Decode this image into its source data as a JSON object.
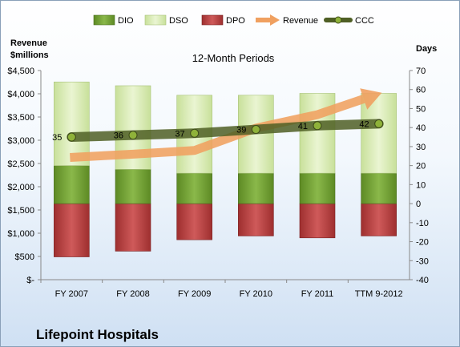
{
  "chart_data": {
    "type": "bar",
    "title": "12-Month Periods",
    "company": "Lifepoint Hospitals",
    "left_axis": {
      "label_line1": "Revenue",
      "label_line2": "$millions",
      "ticks": [
        "$-",
        "$500",
        "$1,000",
        "$1,500",
        "$2,000",
        "$2,500",
        "$3,000",
        "$3,500",
        "$4,000",
        "$4,500"
      ],
      "range": [
        0,
        4500
      ]
    },
    "right_axis": {
      "label": "Days",
      "ticks": [
        "-40",
        "-30",
        "-20",
        "-10",
        "0",
        "10",
        "20",
        "30",
        "40",
        "50",
        "60",
        "70"
      ],
      "range": [
        -40,
        70
      ]
    },
    "categories": [
      "FY 2007",
      "FY 2008",
      "FY 2009",
      "FY 2010",
      "FY 2011",
      "TTM 9-2012"
    ],
    "series": [
      {
        "name": "DIO",
        "axis": "right",
        "kind": "stacked-bar",
        "color": "#6b9a2e",
        "values": [
          20,
          18,
          16,
          16,
          16,
          16
        ]
      },
      {
        "name": "DSO",
        "axis": "right",
        "kind": "stacked-bar",
        "color": "#d8ebb0",
        "values": [
          44,
          44,
          41,
          41,
          42,
          42
        ]
      },
      {
        "name": "DPO",
        "axis": "right",
        "kind": "negative-bar",
        "color": "#b63c3c",
        "values": [
          -28,
          -25,
          -19,
          -17,
          -18,
          -17
        ]
      },
      {
        "name": "Revenue",
        "axis": "left",
        "kind": "arrow",
        "color": "#f0a060",
        "values": [
          2630,
          2700,
          2780,
          3260,
          3550,
          4000
        ]
      },
      {
        "name": "CCC",
        "axis": "right",
        "kind": "line",
        "color": "#556b2f",
        "values": [
          35,
          36,
          37,
          39,
          41,
          42
        ]
      }
    ],
    "ccc_labels": [
      "35",
      "36",
      "37",
      "39",
      "41",
      "42"
    ],
    "legend": [
      "DIO",
      "DSO",
      "DPO",
      "Revenue",
      "CCC"
    ],
    "legend_position": "top"
  }
}
